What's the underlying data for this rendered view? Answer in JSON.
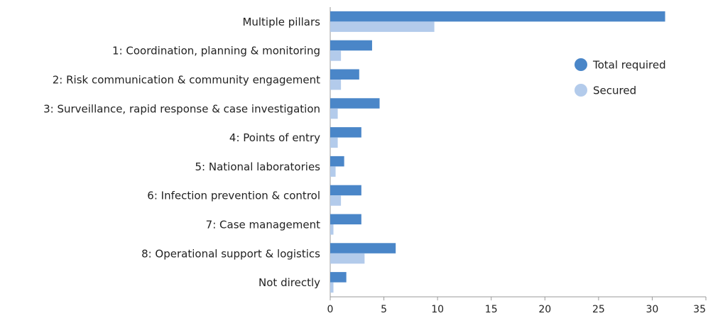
{
  "chart_data": {
    "type": "bar",
    "orientation": "horizontal",
    "categories": [
      "Multiple pillars",
      "1: Coordination, planning & monitoring",
      "2: Risk communication & community engagement",
      "3: Surveillance, rapid response & case investigation",
      "4: Points of entry",
      "5: National laboratories",
      "6: Infection prevention & control",
      "7: Case management",
      "8: Operational support & logistics",
      "Not directly"
    ],
    "series": [
      {
        "name": "Total required",
        "color": "#4a86c8",
        "values": [
          31.2,
          3.9,
          2.7,
          4.6,
          2.9,
          1.3,
          2.9,
          2.9,
          6.1,
          1.5
        ]
      },
      {
        "name": "Secured",
        "color": "#b3cbeb",
        "values": [
          9.7,
          1.0,
          1.0,
          0.7,
          0.7,
          0.5,
          1.0,
          0.3,
          3.2,
          0.3
        ]
      }
    ],
    "xlim": [
      0,
      35
    ],
    "xticks": [
      0,
      5,
      10,
      15,
      20,
      25,
      30,
      35
    ],
    "legend": "right"
  }
}
